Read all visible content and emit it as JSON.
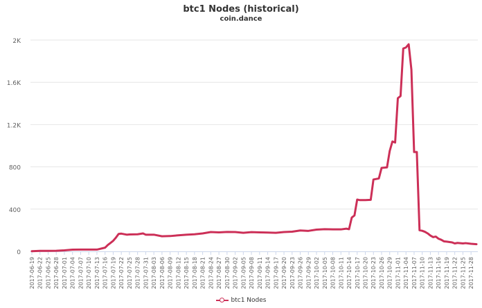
{
  "chart_data": {
    "type": "line",
    "title": "btc1 Nodes (historical)",
    "subtitle": "coin.dance",
    "ylim": [
      0,
      2000
    ],
    "y_ticks": [
      0,
      400,
      800,
      1200,
      1600,
      2000
    ],
    "y_tick_labels": [
      "0",
      "400",
      "800",
      "1.2K",
      "1.6K",
      "2K"
    ],
    "x_tick_labels": [
      "2017-06-19",
      "2017-06-22",
      "2017-06-25",
      "2017-06-28",
      "2017-07-01",
      "2017-07-04",
      "2017-07-07",
      "2017-07-10",
      "2017-07-13",
      "2017-07-16",
      "2017-07-19",
      "2017-07-22",
      "2017-07-25",
      "2017-07-28",
      "2017-07-31",
      "2017-08-03",
      "2017-08-06",
      "2017-08-09",
      "2017-08-12",
      "2017-08-15",
      "2017-08-18",
      "2017-08-21",
      "2017-08-24",
      "2017-08-27",
      "2017-08-30",
      "2017-09-02",
      "2017-09-05",
      "2017-09-08",
      "2017-09-11",
      "2017-09-14",
      "2017-09-17",
      "2017-09-20",
      "2017-09-23",
      "2017-09-26",
      "2017-09-29",
      "2017-10-02",
      "2017-10-05",
      "2017-10-08",
      "2017-10-11",
      "2017-10-14",
      "2017-10-17",
      "2017-10-20",
      "2017-10-23",
      "2017-10-26",
      "2017-10-29",
      "2017-11-01",
      "2017-11-04",
      "2017-11-07",
      "2017-11-10",
      "2017-11-13",
      "2017-11-16",
      "2017-11-19",
      "2017-11-22",
      "2017-11-25",
      "2017-11-28"
    ],
    "grid": true,
    "legend_placement": "bottom-center",
    "series": [
      {
        "name": "btc1 Nodes",
        "color": "#cc2f57",
        "points": [
          [
            "2017-06-19",
            2
          ],
          [
            "2017-06-22",
            5
          ],
          [
            "2017-06-25",
            5
          ],
          [
            "2017-06-28",
            6
          ],
          [
            "2017-07-01",
            10
          ],
          [
            "2017-07-04",
            16
          ],
          [
            "2017-07-07",
            17
          ],
          [
            "2017-07-10",
            17
          ],
          [
            "2017-07-13",
            17
          ],
          [
            "2017-07-16",
            35
          ],
          [
            "2017-07-17",
            60
          ],
          [
            "2017-07-18",
            80
          ],
          [
            "2017-07-19",
            100
          ],
          [
            "2017-07-20",
            130
          ],
          [
            "2017-07-21",
            165
          ],
          [
            "2017-07-22",
            168
          ],
          [
            "2017-07-24",
            158
          ],
          [
            "2017-07-25",
            160
          ],
          [
            "2017-07-28",
            162
          ],
          [
            "2017-07-30",
            170
          ],
          [
            "2017-07-31",
            158
          ],
          [
            "2017-08-03",
            158
          ],
          [
            "2017-08-06",
            143
          ],
          [
            "2017-08-09",
            145
          ],
          [
            "2017-08-12",
            152
          ],
          [
            "2017-08-15",
            158
          ],
          [
            "2017-08-18",
            162
          ],
          [
            "2017-08-21",
            170
          ],
          [
            "2017-08-24",
            183
          ],
          [
            "2017-08-27",
            180
          ],
          [
            "2017-08-30",
            184
          ],
          [
            "2017-09-02",
            183
          ],
          [
            "2017-09-05",
            176
          ],
          [
            "2017-09-08",
            182
          ],
          [
            "2017-09-11",
            180
          ],
          [
            "2017-09-14",
            178
          ],
          [
            "2017-09-17",
            176
          ],
          [
            "2017-09-20",
            183
          ],
          [
            "2017-09-23",
            186
          ],
          [
            "2017-09-26",
            198
          ],
          [
            "2017-09-29",
            194
          ],
          [
            "2017-10-02",
            206
          ],
          [
            "2017-10-05",
            210
          ],
          [
            "2017-10-08",
            208
          ],
          [
            "2017-10-11",
            208
          ],
          [
            "2017-10-13",
            215
          ],
          [
            "2017-10-14",
            210
          ],
          [
            "2017-10-15",
            320
          ],
          [
            "2017-10-16",
            340
          ],
          [
            "2017-10-17",
            490
          ],
          [
            "2017-10-18",
            485
          ],
          [
            "2017-10-20",
            485
          ],
          [
            "2017-10-22",
            488
          ],
          [
            "2017-10-23",
            680
          ],
          [
            "2017-10-25",
            690
          ],
          [
            "2017-10-26",
            790
          ],
          [
            "2017-10-28",
            795
          ],
          [
            "2017-10-29",
            950
          ],
          [
            "2017-10-30",
            1040
          ],
          [
            "2017-10-31",
            1030
          ],
          [
            "2017-11-01",
            1450
          ],
          [
            "2017-11-02",
            1470
          ],
          [
            "2017-11-03",
            1920
          ],
          [
            "2017-11-04",
            1930
          ],
          [
            "2017-11-05",
            1960
          ],
          [
            "2017-11-06",
            1720
          ],
          [
            "2017-11-07",
            940
          ],
          [
            "2017-11-08",
            940
          ],
          [
            "2017-11-09",
            200
          ],
          [
            "2017-11-10",
            195
          ],
          [
            "2017-11-11",
            185
          ],
          [
            "2017-11-12",
            170
          ],
          [
            "2017-11-13",
            150
          ],
          [
            "2017-11-14",
            135
          ],
          [
            "2017-11-15",
            140
          ],
          [
            "2017-11-16",
            120
          ],
          [
            "2017-11-17",
            110
          ],
          [
            "2017-11-18",
            95
          ],
          [
            "2017-11-19",
            92
          ],
          [
            "2017-11-21",
            85
          ],
          [
            "2017-11-22",
            75
          ],
          [
            "2017-11-23",
            80
          ],
          [
            "2017-11-25",
            75
          ],
          [
            "2017-11-26",
            78
          ],
          [
            "2017-11-28",
            72
          ],
          [
            "2017-11-30",
            68
          ]
        ]
      }
    ]
  }
}
